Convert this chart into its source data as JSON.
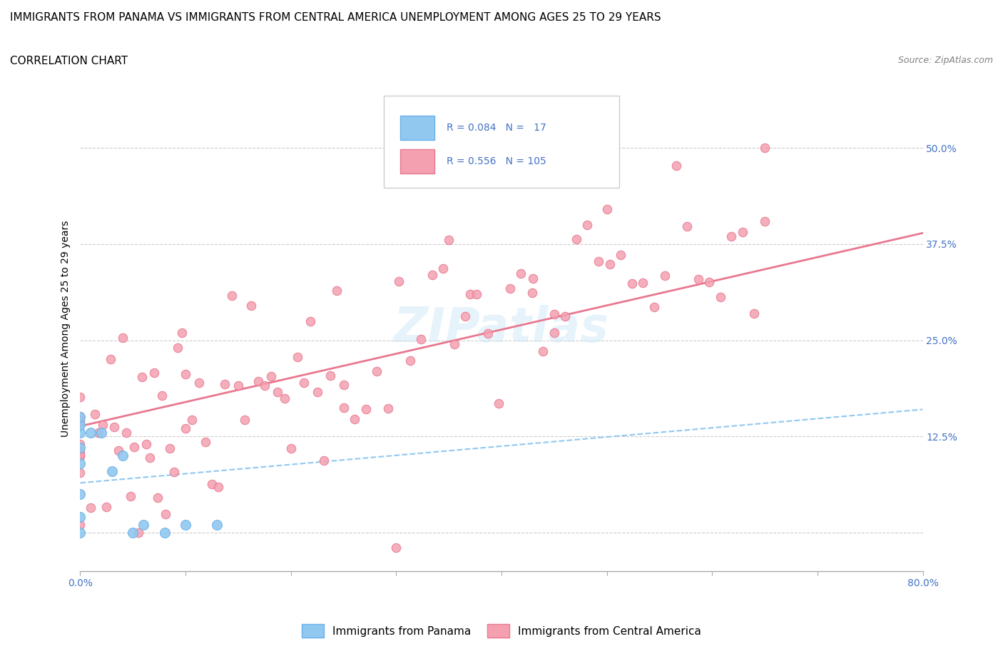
{
  "title_line1": "IMMIGRANTS FROM PANAMA VS IMMIGRANTS FROM CENTRAL AMERICA UNEMPLOYMENT AMONG AGES 25 TO 29 YEARS",
  "title_line2": "CORRELATION CHART",
  "source_text": "Source: ZipAtlas.com",
  "ylabel": "Unemployment Among Ages 25 to 29 years",
  "xlim": [
    0.0,
    0.8
  ],
  "ylim": [
    -0.05,
    0.58
  ],
  "ytick_positions": [
    0.0,
    0.125,
    0.25,
    0.375,
    0.5
  ],
  "ytick_labels": [
    "",
    "12.5%",
    "25.0%",
    "37.5%",
    "50.0%"
  ],
  "panama_color": "#90c8f0",
  "panama_edge": "#6ab0e8",
  "central_america_color": "#f4a0b0",
  "central_america_edge": "#e87890",
  "panama_R": 0.084,
  "panama_N": 17,
  "central_america_R": 0.556,
  "central_america_N": 105,
  "watermark": "ZIPatlas",
  "legend_label_panama": "Immigrants from Panama",
  "legend_label_ca": "Immigrants from Central America"
}
